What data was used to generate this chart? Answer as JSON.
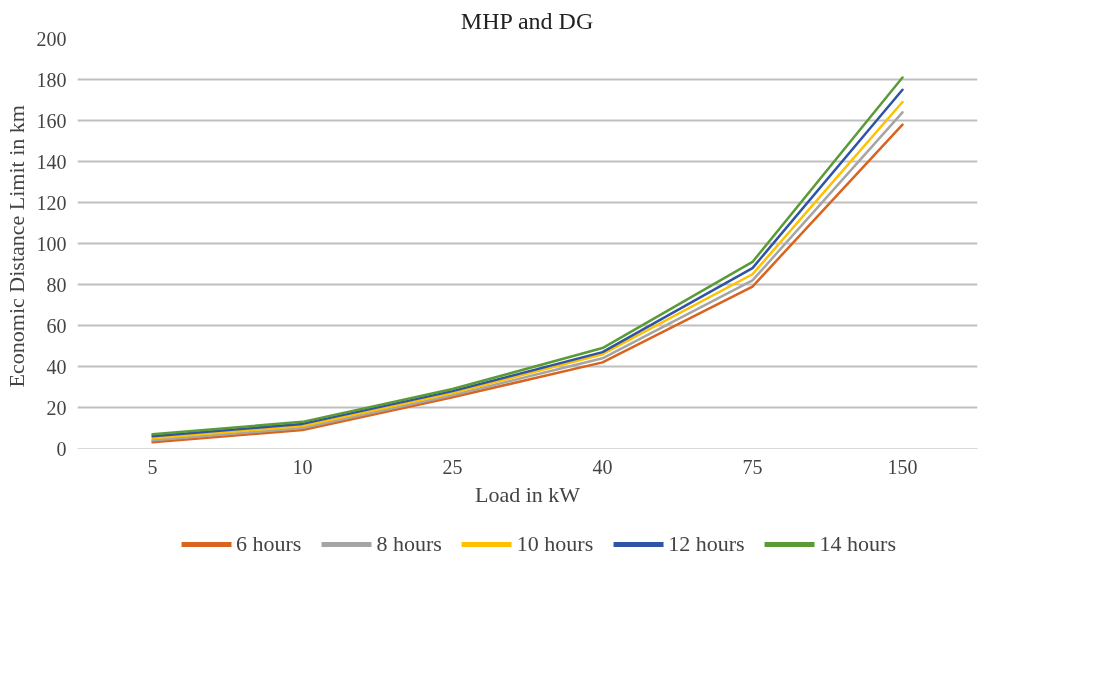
{
  "chart_data": {
    "type": "line",
    "title": "MHP and DG",
    "xlabel": "Load in kW",
    "ylabel": "Economic Distance Limit  in km",
    "categories": [
      "5",
      "10",
      "25",
      "40",
      "75",
      "150"
    ],
    "series": [
      {
        "name": "6 hours",
        "color": "#d9641f",
        "values": [
          3,
          9,
          25,
          42,
          79,
          158
        ]
      },
      {
        "name": "8 hours",
        "color": "#a5a5a5",
        "values": [
          4,
          10,
          26,
          44,
          82,
          164
        ]
      },
      {
        "name": "10 hours",
        "color": "#ffc000",
        "values": [
          5,
          11,
          27,
          46,
          85,
          169
        ]
      },
      {
        "name": "12 hours",
        "color": "#2e54a6",
        "values": [
          6,
          12,
          28,
          47,
          88,
          175
        ]
      },
      {
        "name": "14 hours",
        "color": "#5b9b35",
        "values": [
          7,
          13,
          29,
          49,
          91,
          181
        ]
      }
    ],
    "ylim": [
      0,
      200
    ],
    "yticks": [
      0,
      20,
      40,
      60,
      80,
      100,
      120,
      140,
      160,
      180,
      200
    ],
    "grid": "y",
    "legend": "bottom",
    "marker": "none",
    "line_style": "solid"
  }
}
